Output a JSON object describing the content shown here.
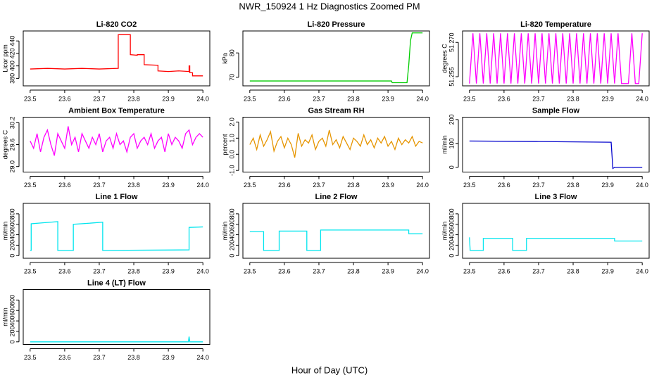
{
  "title": "NWR_150924  1 Hz Diagnostics Zoomed PM",
  "xlabel": "Hour of Day (UTC)",
  "chart_data": [
    {
      "type": "line",
      "title": "Li-820 CO2",
      "ylabel": "Licor ppm",
      "color": "#ff0000",
      "x": [
        23.5,
        23.55,
        23.6,
        23.65,
        23.7,
        23.755,
        23.755,
        23.79,
        23.79,
        23.81,
        23.81,
        23.83,
        23.83,
        23.87,
        23.87,
        23.9,
        23.93,
        23.96,
        23.96,
        23.962,
        23.962,
        23.97,
        23.97,
        24.0
      ],
      "values": [
        395,
        396,
        395,
        396,
        395,
        396,
        450,
        450,
        418,
        417,
        418,
        418,
        402,
        401,
        392,
        391,
        392,
        391,
        400,
        400,
        389,
        389,
        384,
        384
      ],
      "xlim": [
        23.48,
        24.02
      ],
      "xticks": [
        23.5,
        23.6,
        23.7,
        23.8,
        23.9,
        {
          "value": 24,
          "label": "24.0"
        }
      ],
      "ylim": [
        368,
        456
      ],
      "yticks": [
        380,
        400,
        420,
        440
      ]
    },
    {
      "type": "line",
      "title": "Li-820 Pressure",
      "ylabel": "kPa",
      "color": "#00cc00",
      "x": [
        23.5,
        23.6,
        23.7,
        23.8,
        23.91,
        23.912,
        23.955,
        23.96,
        23.965,
        23.97,
        24.0
      ],
      "values": [
        68.5,
        68.5,
        68.5,
        68.5,
        68.5,
        67.8,
        67.8,
        75,
        85,
        88.2,
        88.2
      ],
      "xlim": [
        23.48,
        24.02
      ],
      "xticks": [
        23.5,
        23.6,
        23.7,
        23.8,
        23.9,
        {
          "value": 24,
          "label": "24.0"
        }
      ],
      "ylim": [
        66.5,
        89
      ],
      "yticks": [
        70,
        80
      ]
    },
    {
      "type": "line",
      "title": "Li-820 Temperature",
      "ylabel": "degrees C",
      "color": "#ff00ff",
      "x": [
        23.5,
        23.51,
        23.52,
        23.53,
        23.54,
        23.55,
        23.56,
        23.57,
        23.58,
        23.59,
        23.6,
        23.61,
        23.62,
        23.63,
        23.64,
        23.65,
        23.66,
        23.67,
        23.68,
        23.69,
        23.7,
        23.71,
        23.72,
        23.73,
        23.74,
        23.75,
        23.76,
        23.77,
        23.78,
        23.79,
        23.8,
        23.81,
        23.82,
        23.83,
        23.84,
        23.85,
        23.86,
        23.87,
        23.88,
        23.89,
        23.9,
        23.91,
        23.92,
        23.93,
        23.94,
        23.95,
        23.96,
        23.97,
        23.98,
        23.99,
        24.0
      ],
      "values": [
        51.252,
        51.274,
        51.252,
        51.274,
        51.252,
        51.274,
        51.252,
        51.274,
        51.252,
        51.274,
        51.252,
        51.274,
        51.252,
        51.274,
        51.252,
        51.274,
        51.252,
        51.274,
        51.252,
        51.274,
        51.252,
        51.274,
        51.252,
        51.274,
        51.252,
        51.274,
        51.252,
        51.274,
        51.252,
        51.274,
        51.252,
        51.274,
        51.252,
        51.274,
        51.252,
        51.274,
        51.252,
        51.274,
        51.252,
        51.274,
        51.252,
        51.274,
        51.252,
        51.274,
        51.252,
        51.252,
        51.252,
        51.274,
        51.252,
        51.252,
        51.274
      ],
      "xlim": [
        23.48,
        24.02
      ],
      "xticks": [
        23.5,
        23.6,
        23.7,
        23.8,
        23.9,
        {
          "value": 24,
          "label": "24.0"
        }
      ],
      "ylim": [
        51.251,
        51.275
      ],
      "yticks": [
        51.255,
        {
          "value": 51.27,
          "label": "51.270"
        }
      ]
    },
    {
      "type": "line",
      "title": "Ambient Box Temperature",
      "ylabel": "degrees C",
      "color": "#ff00ff",
      "x": [
        23.5,
        23.51,
        23.52,
        23.53,
        23.54,
        23.55,
        23.56,
        23.57,
        23.58,
        23.59,
        23.6,
        23.61,
        23.62,
        23.63,
        23.64,
        23.65,
        23.66,
        23.67,
        23.68,
        23.69,
        23.7,
        23.71,
        23.72,
        23.73,
        23.74,
        23.75,
        23.76,
        23.77,
        23.78,
        23.79,
        23.8,
        23.81,
        23.82,
        23.83,
        23.84,
        23.85,
        23.86,
        23.87,
        23.88,
        23.89,
        23.9,
        23.91,
        23.92,
        23.93,
        23.94,
        23.95,
        23.96,
        23.97,
        23.98,
        23.99,
        24.0
      ],
      "values": [
        29.7,
        29.5,
        29.9,
        29.4,
        29.8,
        30.0,
        29.6,
        29.3,
        29.9,
        29.7,
        29.5,
        30.1,
        29.6,
        29.8,
        29.4,
        29.9,
        29.7,
        29.5,
        29.8,
        29.6,
        29.9,
        29.4,
        29.7,
        29.8,
        29.5,
        29.9,
        29.6,
        29.7,
        29.4,
        29.8,
        29.9,
        29.5,
        29.7,
        29.8,
        29.6,
        29.9,
        29.5,
        29.7,
        29.8,
        29.4,
        29.9,
        29.6,
        29.8,
        29.7,
        29.5,
        29.9,
        30.0,
        29.6,
        29.8,
        29.9,
        29.8
      ],
      "xlim": [
        23.48,
        24.02
      ],
      "xticks": [
        23.5,
        23.6,
        23.7,
        23.8,
        23.9,
        {
          "value": 24,
          "label": "24.0"
        }
      ],
      "ylim": [
        28.85,
        30.35
      ],
      "yticks": [
        {
          "value": 29,
          "label": "29.0"
        },
        29.6,
        30.2
      ]
    },
    {
      "type": "line",
      "title": "Gas Stream RH",
      "ylabel": "percent",
      "color": "#e69500",
      "x": [
        23.5,
        23.51,
        23.52,
        23.53,
        23.54,
        23.55,
        23.56,
        23.57,
        23.58,
        23.59,
        23.6,
        23.61,
        23.62,
        23.63,
        23.64,
        23.65,
        23.66,
        23.67,
        23.68,
        23.69,
        23.7,
        23.71,
        23.72,
        23.73,
        23.74,
        23.75,
        23.76,
        23.77,
        23.78,
        23.79,
        23.8,
        23.81,
        23.82,
        23.83,
        23.84,
        23.85,
        23.86,
        23.87,
        23.88,
        23.89,
        23.9,
        23.91,
        23.92,
        23.93,
        23.94,
        23.95,
        23.96,
        23.97,
        23.98,
        23.99,
        24.0
      ],
      "values": [
        0.6,
        1.0,
        0.3,
        1.2,
        0.5,
        0.9,
        1.4,
        0.2,
        0.8,
        1.1,
        0.4,
        1.0,
        0.6,
        -0.2,
        1.3,
        0.5,
        0.9,
        0.7,
        1.2,
        0.3,
        0.8,
        1.0,
        0.5,
        1.5,
        0.6,
        0.9,
        0.4,
        1.1,
        0.7,
        0.3,
        1.0,
        0.8,
        0.5,
        1.2,
        0.6,
        0.9,
        0.4,
        1.0,
        0.7,
        1.1,
        0.5,
        0.8,
        0.3,
        1.0,
        0.6,
        0.9,
        0.7,
        1.1,
        0.5,
        0.8,
        0.7
      ],
      "xlim": [
        23.48,
        24.02
      ],
      "xticks": [
        23.5,
        23.6,
        23.7,
        23.8,
        23.9,
        {
          "value": 24,
          "label": "24.0"
        }
      ],
      "ylim": [
        -1.1,
        2.3
      ],
      "yticks": [
        {
          "value": -1,
          "label": "-1.0"
        },
        {
          "value": 0,
          "label": "0.0"
        },
        {
          "value": 1,
          "label": "1.0"
        },
        {
          "value": 2,
          "label": "2.0"
        }
      ]
    },
    {
      "type": "line",
      "title": "Sample Flow",
      "ylabel": "ml/min",
      "color": "#0000cc",
      "x": [
        23.5,
        23.7,
        23.91,
        23.915,
        23.92,
        24.0
      ],
      "values": [
        110,
        108,
        105,
        -5,
        0,
        0
      ],
      "xlim": [
        23.48,
        24.02
      ],
      "xticks": [
        23.5,
        23.6,
        23.7,
        23.8,
        23.9,
        {
          "value": 24,
          "label": "24.0"
        }
      ],
      "ylim": [
        -20,
        210
      ],
      "yticks": [
        0,
        100,
        200
      ]
    },
    {
      "type": "line",
      "title": "Line 1 Flow",
      "ylabel": "ml/min",
      "color": "#00e5ee",
      "x": [
        23.5,
        23.503,
        23.503,
        23.54,
        23.58,
        23.58,
        23.625,
        23.625,
        23.67,
        23.71,
        23.71,
        23.96,
        23.96,
        24.0
      ],
      "values": [
        100,
        100,
        610,
        630,
        650,
        100,
        100,
        600,
        620,
        640,
        100,
        110,
        540,
        550
      ],
      "xlim": [
        23.48,
        24.02
      ],
      "xticks": [
        23.5,
        23.6,
        23.7,
        23.8,
        23.9,
        {
          "value": 24,
          "label": "24.0"
        }
      ],
      "ylim": [
        -50,
        1000
      ],
      "yticks": [
        0,
        200,
        400,
        600,
        800
      ]
    },
    {
      "type": "line",
      "title": "Line 2 Flow",
      "ylabel": "ml/min",
      "color": "#00e5ee",
      "x": [
        23.5,
        23.54,
        23.54,
        23.585,
        23.585,
        23.665,
        23.665,
        23.705,
        23.705,
        23.96,
        23.96,
        24.0
      ],
      "values": [
        460,
        460,
        100,
        100,
        470,
        470,
        100,
        100,
        490,
        490,
        420,
        420
      ],
      "xlim": [
        23.48,
        24.02
      ],
      "xticks": [
        23.5,
        23.6,
        23.7,
        23.8,
        23.9,
        {
          "value": 24,
          "label": "24.0"
        }
      ],
      "ylim": [
        -50,
        1000
      ],
      "yticks": [
        0,
        200,
        400,
        600,
        800
      ]
    },
    {
      "type": "line",
      "title": "Line 3 Flow",
      "ylabel": "ml/min",
      "color": "#00e5ee",
      "x": [
        23.5,
        23.502,
        23.54,
        23.54,
        23.625,
        23.625,
        23.665,
        23.665,
        23.92,
        23.92,
        24.0
      ],
      "values": [
        350,
        100,
        100,
        330,
        330,
        100,
        100,
        330,
        330,
        280,
        280
      ],
      "xlim": [
        23.48,
        24.02
      ],
      "xticks": [
        23.5,
        23.6,
        23.7,
        23.8,
        23.9,
        {
          "value": 24,
          "label": "24.0"
        }
      ],
      "ylim": [
        -50,
        1000
      ],
      "yticks": [
        0,
        200,
        400,
        600,
        800
      ]
    },
    {
      "type": "line",
      "title": "Line 4 (LT) Flow",
      "ylabel": "ml/min",
      "color": "#00e5ee",
      "x": [
        23.5,
        23.958,
        23.96,
        23.962,
        24.0
      ],
      "values": [
        0,
        0,
        100,
        0,
        0
      ],
      "xlim": [
        23.48,
        24.02
      ],
      "xticks": [
        23.5,
        23.6,
        23.7,
        23.8,
        23.9,
        {
          "value": 24,
          "label": "24.0"
        }
      ],
      "ylim": [
        -50,
        1000
      ],
      "yticks": [
        0,
        200,
        400,
        600,
        800
      ]
    }
  ]
}
